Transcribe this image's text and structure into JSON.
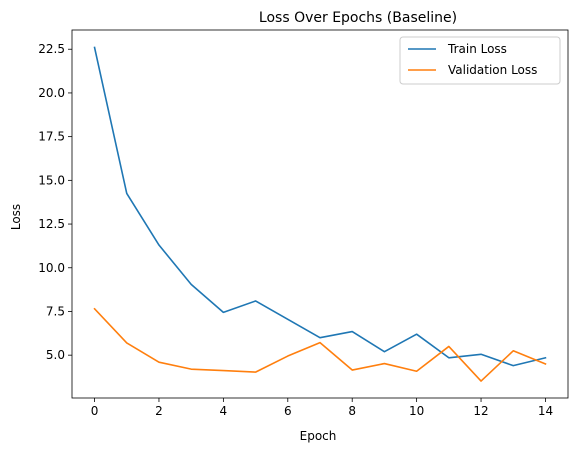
{
  "chart_data": {
    "type": "line",
    "title": "Loss Over Epochs (Baseline)",
    "xlabel": "Epoch",
    "ylabel": "Loss",
    "xlim": [
      -0.7,
      14.7
    ],
    "ylim": [
      2.55,
      23.6
    ],
    "xticks": [
      0,
      2,
      4,
      6,
      8,
      10,
      12,
      14
    ],
    "yticks": [
      5.0,
      7.5,
      10.0,
      12.5,
      15.0,
      17.5,
      20.0,
      22.5
    ],
    "ytick_labels": [
      "5.0",
      "7.5",
      "10.0",
      "12.5",
      "15.0",
      "17.5",
      "20.0",
      "22.5"
    ],
    "grid": false,
    "legend_position": "top-right",
    "x": [
      0,
      1,
      2,
      3,
      4,
      5,
      6,
      7,
      8,
      9,
      10,
      11,
      12,
      13,
      14
    ],
    "series": [
      {
        "name": "Train Loss",
        "color": "#1f77b4",
        "values": [
          22.6,
          14.25,
          11.3,
          9.05,
          7.45,
          8.1,
          7.05,
          6.0,
          6.35,
          5.2,
          6.2,
          4.85,
          5.05,
          4.4,
          4.85
        ]
      },
      {
        "name": "Validation Loss",
        "color": "#ff7f0e",
        "values": [
          7.65,
          5.7,
          4.6,
          4.2,
          4.12,
          4.03,
          4.95,
          5.72,
          4.15,
          4.52,
          4.08,
          5.5,
          3.52,
          5.25,
          4.5
        ]
      }
    ]
  }
}
